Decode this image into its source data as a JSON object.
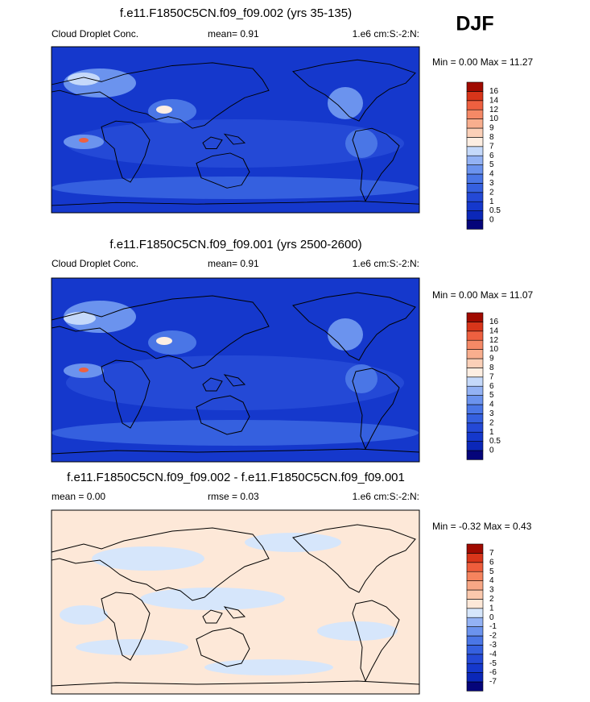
{
  "season": "DJF",
  "panels": [
    {
      "title": "f.e11.F1850C5CN.f09_f09.002 (yrs 35-135)",
      "left_label": "Cloud Droplet Conc.",
      "center_label": "mean=  0.91",
      "right_label": "1.e6 cm:S:-2:N:",
      "min_max": "Min =  0.00 Max =  11.27",
      "colorbar": {
        "labels": [
          "0",
          "0.5",
          "1",
          "2",
          "3",
          "4",
          "5",
          "6",
          "7",
          "8",
          "9",
          "10",
          "12",
          "14",
          "16"
        ],
        "colors": [
          "#05057a",
          "#0b27b8",
          "#1538cc",
          "#2449d6",
          "#3560df",
          "#4a76e6",
          "#6b93ee",
          "#93b2f4",
          "#c5d9fa",
          "#fdeee2",
          "#fbd0b8",
          "#f8ae8e",
          "#f58966",
          "#ee6040",
          "#d8351a",
          "#a00a00"
        ]
      }
    },
    {
      "title": "f.e11.F1850C5CN.f09_f09.001 (yrs 2500-2600)",
      "left_label": "Cloud Droplet Conc.",
      "center_label": "mean=  0.91",
      "right_label": "1.e6 cm:S:-2:N:",
      "min_max": "Min =  0.00 Max =  11.07",
      "colorbar": {
        "labels": [
          "0",
          "0.5",
          "1",
          "2",
          "3",
          "4",
          "5",
          "6",
          "7",
          "8",
          "9",
          "10",
          "12",
          "14",
          "16"
        ],
        "colors": [
          "#05057a",
          "#0b27b8",
          "#1538cc",
          "#2449d6",
          "#3560df",
          "#4a76e6",
          "#6b93ee",
          "#93b2f4",
          "#c5d9fa",
          "#fdeee2",
          "#fbd0b8",
          "#f8ae8e",
          "#f58966",
          "#ee6040",
          "#d8351a",
          "#a00a00"
        ]
      }
    },
    {
      "title": "f.e11.F1850C5CN.f09_f09.002 - f.e11.F1850C5CN.f09_f09.001",
      "left_label": "mean =  0.00",
      "center_label": "rmse =  0.03",
      "right_label": "1.e6 cm:S:-2:N:",
      "min_max": "Min =  -0.32 Max =  0.43",
      "colorbar": {
        "labels": [
          "-7",
          "-6",
          "-5",
          "-4",
          "-3",
          "-2",
          "-1",
          "0",
          "1",
          "2",
          "3",
          "4",
          "5",
          "6",
          "7"
        ],
        "colors": [
          "#05057a",
          "#0b27b8",
          "#1538cc",
          "#2449d6",
          "#3560df",
          "#4a76e6",
          "#6b93ee",
          "#93b2f4",
          "#d6e6fb",
          "#fde8d8",
          "#fbc9ad",
          "#f8a785",
          "#f5845e",
          "#ee5d3c",
          "#d8351a",
          "#a00a00"
        ]
      }
    }
  ]
}
